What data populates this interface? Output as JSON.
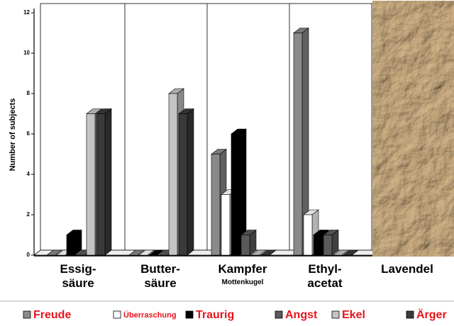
{
  "chart_data": {
    "type": "bar3d",
    "y_label": "Number of subjects",
    "categories": [
      "Essig-\nsäure",
      "Butter-\nsäure",
      "Kampfer",
      "Ethyl-\nacetat",
      "Lavendel"
    ],
    "category_subtitles": [
      null,
      null,
      "Mottenkugel",
      null,
      null
    ],
    "series": [
      {
        "name": "Freude",
        "color": "#8a8a8a",
        "values": [
          0,
          0,
          5,
          11,
          null
        ]
      },
      {
        "name": "Überraschung",
        "color": "#ffffff",
        "values": [
          0,
          0,
          3,
          2,
          null
        ]
      },
      {
        "name": "Traurig",
        "color": "#000000",
        "values": [
          1,
          0,
          6,
          1,
          null
        ]
      },
      {
        "name": "Angst",
        "color": "#5a5a5a",
        "values": [
          0,
          0,
          1,
          1,
          null
        ]
      },
      {
        "name": "Ekel",
        "color": "#c4c4c4",
        "values": [
          7,
          8,
          0,
          0,
          null
        ]
      },
      {
        "name": "Ärger",
        "color": "#3a3a3a",
        "values": [
          7,
          7,
          0,
          0,
          null
        ]
      }
    ],
    "ylim": [
      0,
      12
    ],
    "yticks": [
      0,
      2,
      4,
      6,
      8,
      10,
      12
    ],
    "legend_position": "bottom",
    "legend_text_color": "#e8141c"
  }
}
